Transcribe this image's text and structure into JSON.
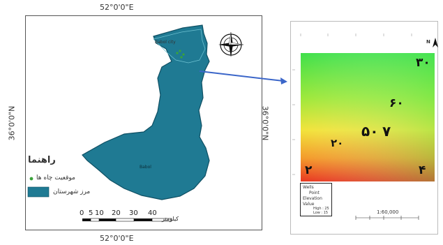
{
  "coords": {
    "top": "52°0'0\"E",
    "bottom": "52°0'0\"E",
    "left": "36°0'0\"N",
    "right": "36°0'0\"N"
  },
  "legend": {
    "title": "راهنما",
    "items": [
      {
        "label": "موقعیت چاه ها",
        "symbol": "point",
        "color": "#2e8b2e"
      },
      {
        "label": "مرز شهرستان",
        "symbol": "polygon",
        "color": "#1f7a93"
      }
    ]
  },
  "scale_bar": {
    "ticks": [
      "0",
      "5",
      "10",
      "20",
      "30",
      "40"
    ],
    "unit": "کیلومتر"
  },
  "map_labels": {
    "north_region": "Babol city",
    "center_region": "Babol"
  },
  "raster_labels": [
    "۳۰",
    "۶۰",
    "۵۰",
    "۷",
    "۲۰",
    "۲",
    "۴"
  ],
  "raster_legend": {
    "title": "Wells",
    "point_label": "Point",
    "elevation_label": "Elevation",
    "value_label": "Value",
    "high_label": "High : 25",
    "low_label": "Low : 15"
  },
  "raster_scale": "1:60,000",
  "north_arrow_letter": "N",
  "colors": {
    "basin": "#1f7a93",
    "basin_edge": "#0f4f63",
    "arrow": "#3b66c9",
    "well": "#3aa33a"
  }
}
